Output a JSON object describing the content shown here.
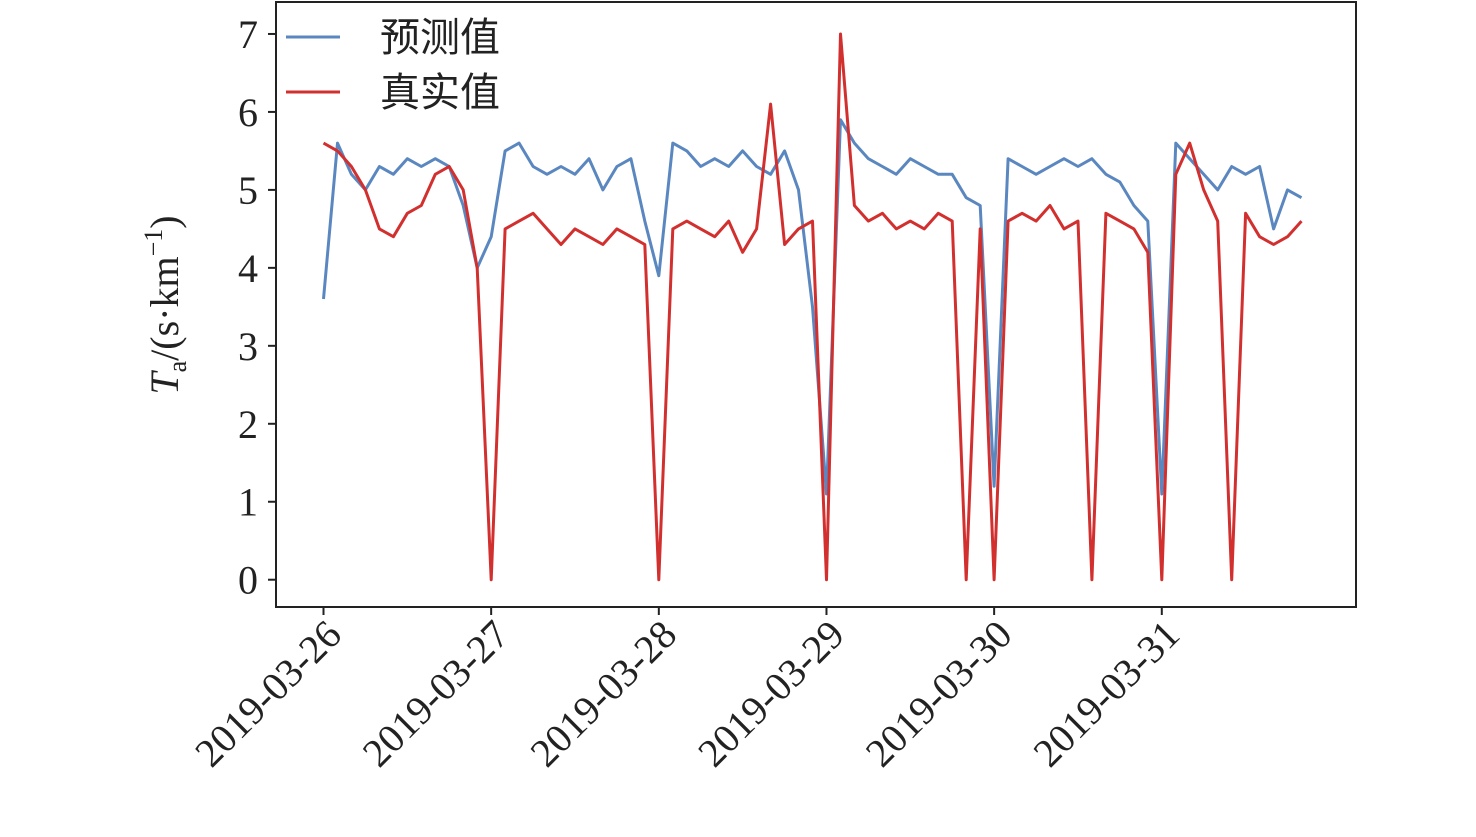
{
  "chart_data": {
    "type": "line",
    "ylabel": {
      "main": "T",
      "sub": "a",
      "rest": "/(s·km",
      "sup": "−1",
      "end": ")"
    },
    "xlim": [
      -3.4,
      73.9
    ],
    "xticks": [
      {
        "value": 0,
        "label": "2019-03-26"
      },
      {
        "value": 12,
        "label": "2019-03-27"
      },
      {
        "value": 24,
        "label": "2019-03-28"
      },
      {
        "value": 36,
        "label": "2019-03-29"
      },
      {
        "value": 48,
        "label": "2019-03-30"
      },
      {
        "value": 60,
        "label": "2019-03-31"
      }
    ],
    "ylim": [
      -0.35,
      7.41
    ],
    "yticks": [
      0,
      1,
      2,
      3,
      4,
      5,
      6,
      7
    ],
    "legend": "upper left",
    "series": [
      {
        "name": "预测值",
        "color": "#5b87c0",
        "values": [
          3.6,
          5.6,
          5.2,
          5.0,
          5.3,
          5.2,
          5.4,
          5.3,
          5.4,
          5.3,
          4.8,
          4.0,
          4.4,
          5.5,
          5.6,
          5.3,
          5.2,
          5.3,
          5.2,
          5.4,
          5.0,
          5.3,
          5.4,
          4.6,
          3.9,
          5.6,
          5.5,
          5.3,
          5.4,
          5.3,
          5.5,
          5.3,
          5.2,
          5.5,
          5.0,
          3.5,
          1.1,
          5.9,
          5.6,
          5.4,
          5.3,
          5.2,
          5.4,
          5.3,
          5.2,
          5.2,
          4.9,
          4.8,
          1.2,
          5.4,
          5.3,
          5.2,
          5.3,
          5.4,
          5.3,
          5.4,
          5.2,
          5.1,
          4.8,
          4.6,
          1.1,
          5.6,
          5.4,
          5.2,
          5.0,
          5.3,
          5.2,
          5.3,
          4.5,
          5.0,
          4.9
        ]
      },
      {
        "name": "真实值",
        "color": "#d2302f",
        "values": [
          5.6,
          5.5,
          5.3,
          5.0,
          4.5,
          4.4,
          4.7,
          4.8,
          5.2,
          5.3,
          5.0,
          4.0,
          0,
          4.5,
          4.6,
          4.7,
          4.5,
          4.3,
          4.5,
          4.4,
          4.3,
          4.5,
          4.4,
          4.3,
          0,
          4.5,
          4.6,
          4.5,
          4.4,
          4.6,
          4.2,
          4.5,
          6.1,
          4.3,
          4.5,
          4.6,
          0,
          7.0,
          4.8,
          4.6,
          4.7,
          4.5,
          4.6,
          4.5,
          4.7,
          4.6,
          0,
          4.5,
          0,
          4.6,
          4.7,
          4.6,
          4.8,
          4.5,
          4.6,
          0,
          4.7,
          4.6,
          4.5,
          4.2,
          0,
          5.2,
          5.6,
          5.0,
          4.6,
          0,
          4.7,
          4.4,
          4.3,
          4.4,
          4.6
        ]
      }
    ]
  }
}
